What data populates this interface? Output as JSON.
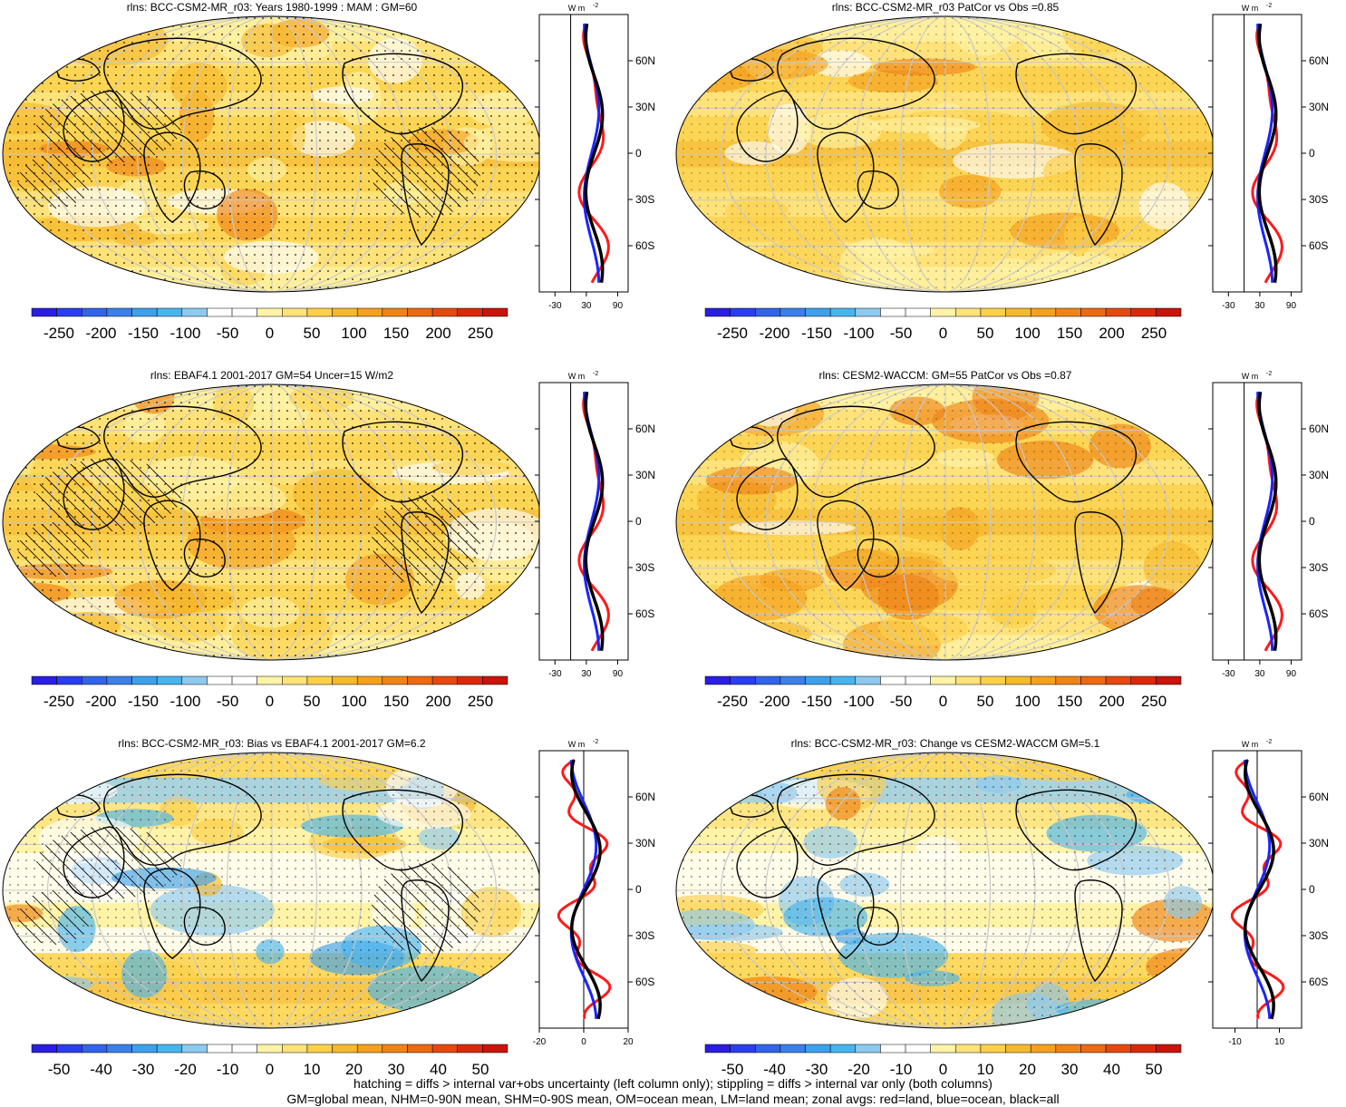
{
  "panels": [
    {
      "title": "rlns: BCC-CSM2-MR_r03: Years 1980-1999 : MAM : GM=60",
      "colorbar_labels": [
        "-250",
        "-200",
        "-150",
        "-100",
        "-50",
        "0",
        "50",
        "100",
        "150",
        "200",
        "250"
      ],
      "zonal_xticks": [
        "-30",
        "30",
        "90"
      ],
      "zonal_xrange": [
        -60,
        110
      ],
      "map_style": "clim",
      "hatched": true
    },
    {
      "title": "rlns: BCC-CSM2-MR_r03 PatCor vs Obs =0.85",
      "colorbar_labels": [
        "-250",
        "-200",
        "-150",
        "-100",
        "-50",
        "0",
        "50",
        "100",
        "150",
        "200",
        "250"
      ],
      "zonal_xticks": [
        "-30",
        "30",
        "90"
      ],
      "zonal_xrange": [
        -60,
        110
      ],
      "map_style": "clim",
      "hatched": false
    },
    {
      "title": "rlns: EBAF4.1 2001-2017 GM=54 Uncer=15 W/m2",
      "colorbar_labels": [
        "-250",
        "-200",
        "-150",
        "-100",
        "-50",
        "0",
        "50",
        "100",
        "150",
        "200",
        "250"
      ],
      "zonal_xticks": [
        "-30",
        "30",
        "90"
      ],
      "zonal_xrange": [
        -60,
        110
      ],
      "map_style": "clim",
      "hatched": true
    },
    {
      "title": "rlns: CESM2-WACCM: GM=55 PatCor vs Obs =0.87",
      "colorbar_labels": [
        "-250",
        "-200",
        "-150",
        "-100",
        "-50",
        "0",
        "50",
        "100",
        "150",
        "200",
        "250"
      ],
      "zonal_xticks": [
        "-30",
        "30",
        "90"
      ],
      "zonal_xrange": [
        -60,
        110
      ],
      "map_style": "clim",
      "hatched": false
    },
    {
      "title": "rlns: BCC-CSM2-MR_r03: Bias vs EBAF4.1 2001-2017 GM=6.2",
      "colorbar_labels": [
        "-50",
        "-40",
        "-30",
        "-20",
        "-10",
        "0",
        "10",
        "20",
        "30",
        "40",
        "50"
      ],
      "zonal_xticks": [
        "-20",
        "0",
        "20"
      ],
      "zonal_xrange": [
        -20,
        20
      ],
      "map_style": "diff",
      "hatched": true
    },
    {
      "title": "rlns: BCC-CSM2-MR_r03: Change vs CESM2-WACCM GM=5.1",
      "colorbar_labels": [
        "-50",
        "-40",
        "-30",
        "-20",
        "-10",
        "0",
        "10",
        "20",
        "30",
        "40",
        "50"
      ],
      "zonal_xticks": [
        "-10",
        "10"
      ],
      "zonal_xrange": [
        -20,
        20
      ],
      "map_style": "diff",
      "hatched": false
    }
  ],
  "zonal_units": "W m",
  "zonal_units_exp": "-2",
  "lat_ticks": [
    "60N",
    "30N",
    "0",
    "30S",
    "60S"
  ],
  "colorbar_colors": [
    "#2a1ee0",
    "#2a3ef0",
    "#3264e6",
    "#3a80e8",
    "#3ea0ea",
    "#48b4ee",
    "#8ccaf0",
    "#ffffff",
    "#ffffff",
    "#fff3a8",
    "#ffe27a",
    "#fcd04a",
    "#f6b82e",
    "#f4a020",
    "#ee8418",
    "#ea6a14",
    "#e44a10",
    "#d82a0a",
    "#c8140a"
  ],
  "zonal_line_colors": {
    "land": "#ff1a1a",
    "ocean": "#1a24ff",
    "all": "#000000"
  },
  "footer_lines": [
    "hatching = diffs > internal var+obs uncertainty (left column only); stippling = diffs > internal var only (both columns)",
    "GM=global mean, NHM=0-90N mean, SHM=0-90S mean, OM=ocean mean, LM=land mean; zonal avgs: red=land, blue=ocean, black=all"
  ]
}
